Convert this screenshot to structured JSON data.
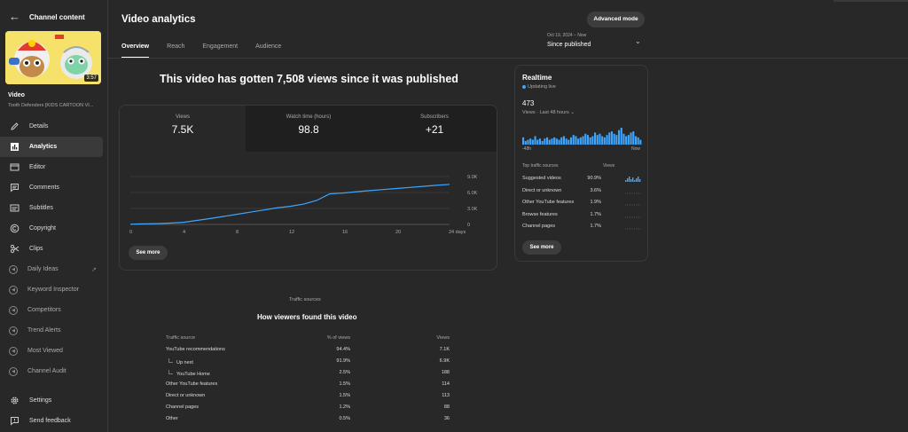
{
  "sidebar": {
    "title": "Channel content",
    "thumbnail_duration": "3:57",
    "video_label": "Video",
    "video_subtitle": "Tooth Defenders [KIDS CARTOON VI...",
    "items": [
      {
        "label": "Details",
        "icon": "pencil-icon",
        "active": false
      },
      {
        "label": "Analytics",
        "icon": "analytics-icon",
        "active": true
      },
      {
        "label": "Editor",
        "icon": "editor-icon",
        "active": false
      },
      {
        "label": "Comments",
        "icon": "comments-icon",
        "active": false
      },
      {
        "label": "Subtitles",
        "icon": "subtitles-icon",
        "active": false
      },
      {
        "label": "Copyright",
        "icon": "copyright-icon",
        "active": false
      },
      {
        "label": "Clips",
        "icon": "clips-icon",
        "active": false
      }
    ],
    "extensions": [
      {
        "label": "Daily Ideas"
      },
      {
        "label": "Keyword Inspector"
      },
      {
        "label": "Competitors"
      },
      {
        "label": "Trend Alerts"
      },
      {
        "label": "Most Viewed"
      },
      {
        "label": "Channel Audit"
      }
    ],
    "bottom": [
      {
        "label": "Settings",
        "icon": "gear-icon"
      },
      {
        "label": "Send feedback",
        "icon": "feedback-icon"
      }
    ]
  },
  "header": {
    "title": "Video analytics",
    "advanced_mode": "Advanced mode",
    "tabs": [
      "Overview",
      "Reach",
      "Engagement",
      "Audience"
    ],
    "active_tab": "Overview",
    "date_small": "Oct 19, 2024 – Now",
    "date_main": "Since published"
  },
  "headline": "This video has gotten 7,508 views since it was published",
  "metrics": [
    {
      "label": "Views",
      "value": "7.5K"
    },
    {
      "label": "Watch time (hours)",
      "value": "98.8"
    },
    {
      "label": "Subscribers",
      "value": "+21"
    }
  ],
  "chart_data": {
    "type": "line",
    "title": "",
    "xlabel": "",
    "ylabel": "",
    "x_ticks": [
      "0",
      "4",
      "8",
      "12",
      "16",
      "20",
      "24 days"
    ],
    "y_ticks": [
      "0",
      "3.0K",
      "6.0K",
      "9.0K"
    ],
    "ylim": [
      0,
      9000
    ],
    "xlim": [
      0,
      24
    ],
    "x": [
      0,
      1,
      2,
      3,
      4,
      5,
      6,
      7,
      8,
      9,
      10,
      11,
      12,
      13,
      14,
      15,
      16,
      17,
      18,
      19,
      20,
      21,
      22,
      23,
      24
    ],
    "values": [
      50,
      100,
      150,
      250,
      400,
      750,
      1100,
      1500,
      1900,
      2300,
      2700,
      3100,
      3400,
      3800,
      4500,
      5750,
      5900,
      6150,
      6350,
      6550,
      6750,
      6950,
      7150,
      7350,
      7508
    ],
    "color": "#3ea6ff"
  },
  "see_more": "See more",
  "realtime": {
    "title": "Realtime",
    "status": "Updating live",
    "count": "473",
    "views_label": "Views · Last 48 hours",
    "axis_left": "-48h",
    "axis_right": "Now",
    "bars": [
      6,
      3,
      4,
      5,
      4,
      7,
      4,
      5,
      3,
      5,
      6,
      4,
      5,
      6,
      5,
      4,
      6,
      7,
      5,
      4,
      6,
      8,
      7,
      5,
      6,
      7,
      9,
      8,
      6,
      7,
      10,
      8,
      9,
      7,
      6,
      8,
      10,
      11,
      9,
      8,
      12,
      14,
      9,
      7,
      8,
      10,
      11,
      7,
      6,
      4
    ],
    "col_source": "Top traffic sources",
    "col_views": "Views",
    "sources": [
      {
        "name": "Suggested videos",
        "pct": "90.9%"
      },
      {
        "name": "Direct or unknown",
        "pct": "3.6%"
      },
      {
        "name": "Other YouTube features",
        "pct": "1.9%"
      },
      {
        "name": "Browse features",
        "pct": "1.7%"
      },
      {
        "name": "Channel pages",
        "pct": "1.7%"
      }
    ],
    "see_more": "See more"
  },
  "traffic": {
    "small": "Traffic sources",
    "title": "How viewers found this video",
    "headers": [
      "Traffic source",
      "% of views",
      "Views"
    ],
    "rows": [
      {
        "source": "YouTube recommendations",
        "pct": "94.4%",
        "views": "7.1K",
        "child": false
      },
      {
        "source": "Up next",
        "pct": "91.9%",
        "views": "6.9K",
        "child": true
      },
      {
        "source": "YouTube Home",
        "pct": "2.5%",
        "views": "188",
        "child": true
      },
      {
        "source": "Other YouTube features",
        "pct": "1.5%",
        "views": "114",
        "child": false
      },
      {
        "source": "Direct or unknown",
        "pct": "1.5%",
        "views": "113",
        "child": false
      },
      {
        "source": "Channel pages",
        "pct": "1.2%",
        "views": "88",
        "child": false
      },
      {
        "source": "Other",
        "pct": "0.5%",
        "views": "36",
        "child": false
      }
    ]
  }
}
